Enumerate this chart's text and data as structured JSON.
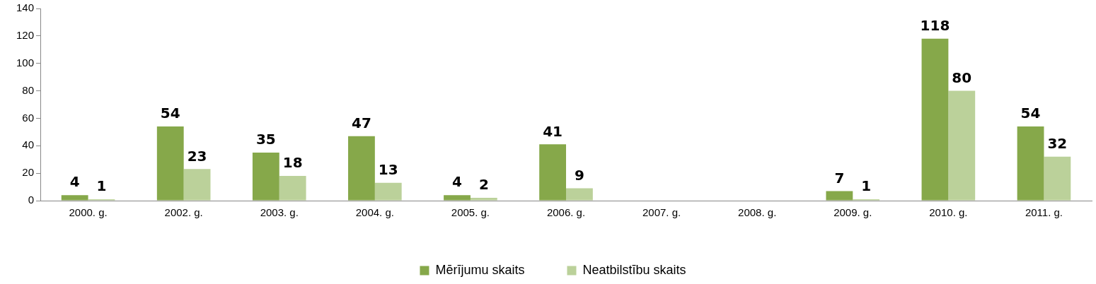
{
  "chart_data": {
    "type": "bar",
    "categories": [
      "2000. g.",
      "2002. g.",
      "2003. g.",
      "2004. g.",
      "2005. g.",
      "2006. g.",
      "2007. g.",
      "2008. g.",
      "2009. g.",
      "2010. g.",
      "2011. g."
    ],
    "series": [
      {
        "name": "Mērījumu skaits",
        "color": "#86a84a",
        "values": [
          4,
          54,
          35,
          47,
          4,
          41,
          null,
          null,
          7,
          118,
          54
        ]
      },
      {
        "name": "Neatbilstību skaits",
        "color": "#bbd19a",
        "values": [
          1,
          23,
          18,
          13,
          2,
          9,
          null,
          null,
          1,
          80,
          32
        ]
      }
    ],
    "ylim": [
      0,
      140
    ],
    "yticks": [
      0,
      20,
      40,
      60,
      80,
      100,
      120,
      140
    ],
    "grid": false,
    "legend": "bottom",
    "data_labels": true
  }
}
